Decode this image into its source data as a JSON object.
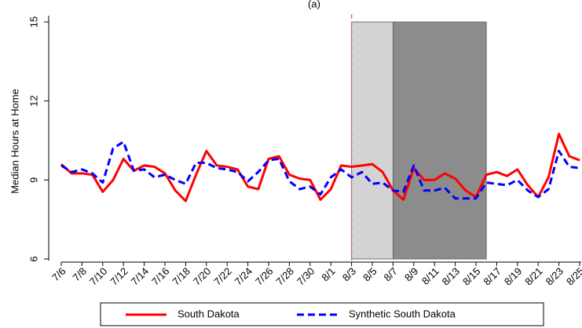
{
  "chart_data": {
    "type": "line",
    "title": "(a)",
    "y_label": "Median Hours at Home",
    "categories": [
      "7/6",
      null,
      "7/8",
      null,
      "7/10",
      null,
      "7/12",
      null,
      "7/14",
      null,
      "7/16",
      null,
      "7/18",
      null,
      "7/20",
      null,
      "7/22",
      null,
      "7/24",
      null,
      "7/26",
      null,
      "7/28",
      null,
      "7/30",
      null,
      "8/1",
      null,
      "8/3",
      null,
      "8/5",
      null,
      "8/7",
      null,
      "8/9",
      null,
      "8/11",
      null,
      "8/13",
      null,
      "8/15",
      null,
      "8/17",
      null,
      "8/19",
      null,
      "8/21",
      null,
      "8/23",
      null,
      "8/25"
    ],
    "series": [
      {
        "name": "South Dakota",
        "color": "#ff0000",
        "dash": false,
        "values": [
          9.6,
          9.25,
          9.25,
          9.2,
          8.55,
          9.0,
          9.8,
          9.35,
          9.55,
          9.5,
          9.25,
          8.6,
          8.2,
          9.2,
          10.1,
          9.55,
          9.5,
          9.4,
          8.75,
          8.65,
          9.8,
          9.9,
          9.2,
          9.05,
          9.0,
          8.25,
          8.65,
          9.55,
          9.5,
          9.55,
          9.6,
          9.3,
          8.6,
          8.25,
          9.45,
          9.0,
          9.0,
          9.25,
          9.05,
          8.6,
          8.35,
          9.2,
          9.3,
          9.15,
          9.4,
          8.8,
          8.35,
          9.1,
          10.75,
          9.9,
          9.75
        ]
      },
      {
        "name": "Synthetic South Dakota",
        "color": "#0000ff",
        "dash": true,
        "values": [
          9.55,
          9.3,
          9.4,
          9.25,
          8.9,
          10.2,
          10.45,
          9.35,
          9.4,
          9.1,
          9.2,
          9.0,
          8.85,
          9.65,
          9.65,
          9.45,
          9.4,
          9.3,
          8.95,
          9.3,
          9.75,
          9.8,
          8.95,
          8.65,
          8.75,
          8.45,
          9.1,
          9.4,
          9.1,
          9.3,
          8.85,
          8.9,
          8.6,
          8.55,
          9.55,
          8.6,
          8.6,
          8.7,
          8.3,
          8.3,
          8.3,
          8.9,
          8.85,
          8.8,
          9.0,
          8.6,
          8.35,
          8.65,
          10.1,
          9.5,
          9.45
        ]
      }
    ],
    "ylim": [
      6,
      15
    ],
    "yticks": [
      6,
      9,
      12,
      15
    ],
    "shaded_regions": [
      {
        "start": 28,
        "end": 32,
        "color": "#d3d3d3"
      },
      {
        "start": 32,
        "end": 41,
        "color": "#8c8c8c"
      }
    ],
    "vline": {
      "x": 28,
      "color": "#d9708a"
    },
    "grid": false,
    "legend": "bottom"
  }
}
